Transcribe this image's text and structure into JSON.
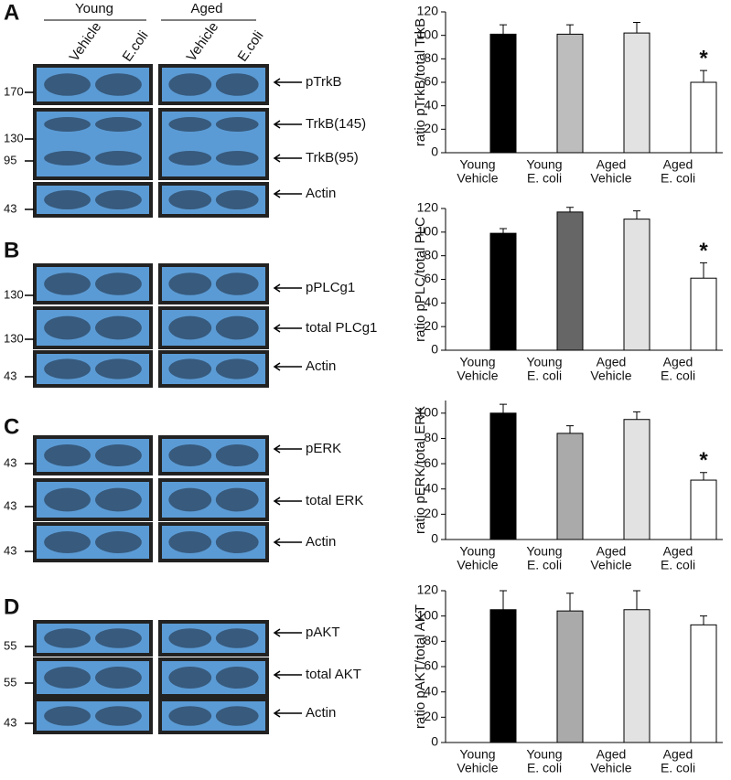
{
  "header": {
    "groups": [
      "Young",
      "Aged"
    ],
    "lanes": [
      "Vehicle",
      "E.coli"
    ]
  },
  "blots": [
    {
      "panel": "A",
      "rows": [
        {
          "labels": [
            "pTrkB"
          ],
          "markers": [
            170
          ]
        },
        {
          "labels": [
            "TrkB(145)",
            "TrkB(95)"
          ],
          "markers": [
            130,
            95
          ]
        },
        {
          "labels": [
            "Actin"
          ],
          "markers": [
            43
          ]
        }
      ]
    },
    {
      "panel": "B",
      "rows": [
        {
          "labels": [
            "pPLCg1"
          ],
          "markers": [
            130
          ]
        },
        {
          "labels": [
            "total PLCg1"
          ],
          "markers": [
            130
          ]
        },
        {
          "labels": [
            "Actin"
          ],
          "markers": [
            43
          ]
        }
      ]
    },
    {
      "panel": "C",
      "rows": [
        {
          "labels": [
            "pERK"
          ],
          "markers": [
            43
          ]
        },
        {
          "labels": [
            "total ERK"
          ],
          "markers": [
            43
          ]
        },
        {
          "labels": [
            "Actin"
          ],
          "markers": [
            43
          ]
        }
      ]
    },
    {
      "panel": "D",
      "rows": [
        {
          "labels": [
            "pAKT"
          ],
          "markers": [
            55
          ]
        },
        {
          "labels": [
            "total AKT"
          ],
          "markers": [
            55
          ]
        },
        {
          "labels": [
            "Actin"
          ],
          "markers": [
            43
          ]
        }
      ]
    }
  ],
  "chart_data": [
    {
      "type": "bar",
      "y_label": "ratio pTrkB/total TrkB",
      "categories": [
        [
          "Young",
          "Vehicle"
        ],
        [
          "Young",
          "E. coli"
        ],
        [
          "Aged",
          "Vehicle"
        ],
        [
          "Aged",
          "E. coli"
        ]
      ],
      "values": [
        101,
        101,
        102,
        60
      ],
      "errors": [
        8,
        8,
        9,
        10
      ],
      "colors": [
        "#000000",
        "#bdbdbd",
        "#e2e2e2",
        "#ffffff"
      ],
      "ylim": [
        0,
        120
      ],
      "yticks": [
        0,
        20,
        40,
        60,
        80,
        100,
        120
      ],
      "annotations": [
        {
          "text": "*",
          "at": 3
        }
      ]
    },
    {
      "type": "bar",
      "y_label": "ratio pPLC/total PLC",
      "categories": [
        [
          "Young",
          "Vehicle"
        ],
        [
          "Young",
          "E. coli"
        ],
        [
          "Aged",
          "Vehicle"
        ],
        [
          "Aged",
          "E. coli"
        ]
      ],
      "values": [
        99,
        117,
        111,
        61
      ],
      "errors": [
        4,
        4,
        7,
        13
      ],
      "colors": [
        "#000000",
        "#666666",
        "#e2e2e2",
        "#ffffff"
      ],
      "ylim": [
        0,
        120
      ],
      "yticks": [
        0,
        20,
        40,
        60,
        80,
        100,
        120
      ],
      "annotations": [
        {
          "text": "*",
          "at": 3
        }
      ]
    },
    {
      "type": "bar",
      "y_label": "ratio pERK/total ERK",
      "categories": [
        [
          "Young",
          "Vehicle"
        ],
        [
          "Young",
          "E. coli"
        ],
        [
          "Aged",
          "Vehicle"
        ],
        [
          "Aged",
          "E. coli"
        ]
      ],
      "values": [
        100,
        84,
        95,
        47
      ],
      "errors": [
        7,
        6,
        6,
        6
      ],
      "colors": [
        "#000000",
        "#aaaaaa",
        "#e2e2e2",
        "#ffffff"
      ],
      "ylim": [
        0,
        110
      ],
      "yticks": [
        0,
        20,
        40,
        60,
        80,
        100
      ],
      "annotations": [
        {
          "text": "*",
          "at": 3
        }
      ]
    },
    {
      "type": "bar",
      "y_label": "ratio pAKT/total AKT",
      "categories": [
        [
          "Young",
          "Vehicle"
        ],
        [
          "Young",
          "E. coli"
        ],
        [
          "Aged",
          "Vehicle"
        ],
        [
          "Aged",
          "E. coli"
        ]
      ],
      "values": [
        105,
        104,
        105,
        93
      ],
      "errors": [
        15,
        14,
        15,
        7
      ],
      "colors": [
        "#000000",
        "#aaaaaa",
        "#e2e2e2",
        "#ffffff"
      ],
      "ylim": [
        0,
        120
      ],
      "yticks": [
        0,
        20,
        40,
        60,
        80,
        100,
        120
      ],
      "annotations": []
    }
  ]
}
